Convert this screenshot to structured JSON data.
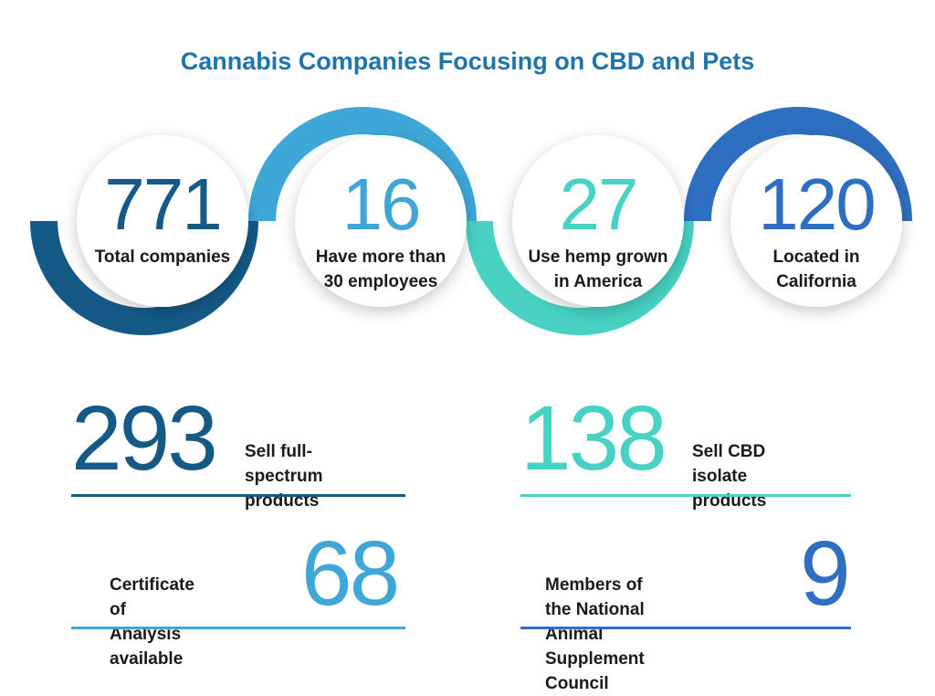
{
  "title": "Cannabis Companies Focusing on CBD and Pets",
  "colors": {
    "title": "#1f74ab",
    "dark_blue": "#155a87",
    "light_blue": "#3ea7d8",
    "teal": "#47d2c3",
    "royal_blue": "#2f6fc2"
  },
  "circles": [
    {
      "number": "771",
      "label_line1": "Total companies",
      "label_line2": ""
    },
    {
      "number": "16",
      "label_line1": "Have more than",
      "label_line2": "30 employees"
    },
    {
      "number": "27",
      "label_line1": "Use hemp grown",
      "label_line2": "in America"
    },
    {
      "number": "120",
      "label_line1": "Located in",
      "label_line2": "California"
    }
  ],
  "stats": [
    {
      "number": "293",
      "line1": "Sell full-spectrum",
      "line2": "products"
    },
    {
      "number": "138",
      "line1": "Sell CBD isolate",
      "line2": "products"
    },
    {
      "number": "68",
      "line1": "Certificate of",
      "line2": "Analysis available"
    },
    {
      "number": "9",
      "line1": "Members of the National",
      "line2": "Animal Supplement Council"
    }
  ]
}
